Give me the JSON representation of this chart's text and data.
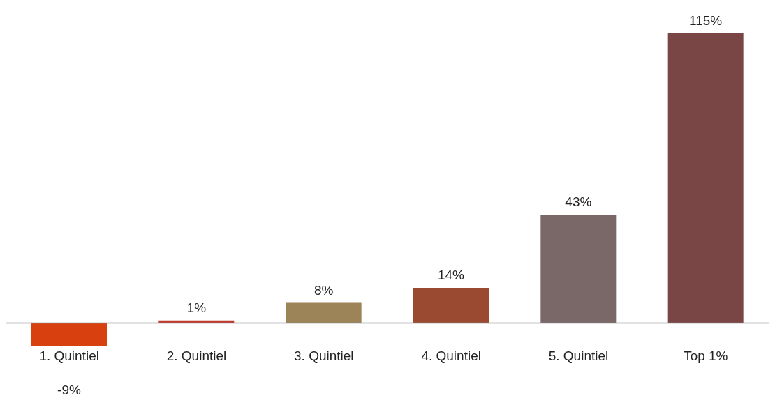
{
  "chart_data": {
    "type": "bar",
    "categories": [
      "1. Quintiel",
      "2. Quintiel",
      "3. Quintiel",
      "4. Quintiel",
      "5. Quintiel",
      "Top 1%"
    ],
    "values": [
      -9,
      1,
      8,
      14,
      43,
      115
    ],
    "colors": [
      "#d8400f",
      "#c0392b",
      "#9c8358",
      "#9b4a32",
      "#7a6868",
      "#7a4545"
    ],
    "value_labels": [
      "-9%",
      "1%",
      "8%",
      "14%",
      "43%",
      "115%"
    ]
  }
}
